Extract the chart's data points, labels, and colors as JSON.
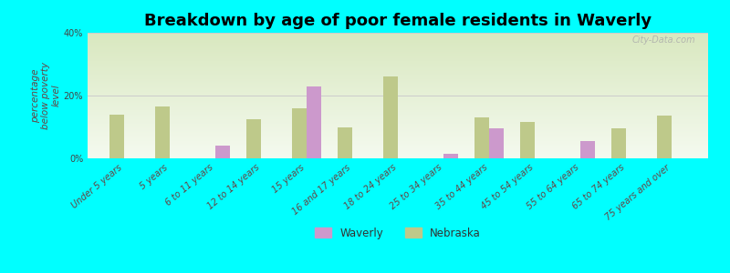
{
  "title": "Breakdown by age of poor female residents in Waverly",
  "categories": [
    "Under 5 years",
    "5 years",
    "6 to 11 years",
    "12 to 14 years",
    "15 years",
    "16 and 17 years",
    "18 to 24 years",
    "25 to 34 years",
    "35 to 44 years",
    "45 to 54 years",
    "55 to 64 years",
    "65 to 74 years",
    "75 years and over"
  ],
  "waverly_values": [
    null,
    null,
    4.0,
    null,
    23.0,
    null,
    null,
    1.5,
    9.5,
    null,
    5.5,
    null,
    null
  ],
  "nebraska_values": [
    14.0,
    16.5,
    null,
    12.5,
    16.0,
    10.0,
    26.0,
    null,
    13.0,
    11.5,
    null,
    9.5,
    13.5
  ],
  "waverly_color": "#cc99cc",
  "nebraska_color": "#bec98a",
  "background_color": "#00ffff",
  "ylabel": "percentage\nbelow poverty\nlevel",
  "ylim": [
    0,
    40
  ],
  "yticks": [
    0,
    20,
    40
  ],
  "ytick_labels": [
    "0%",
    "20%",
    "40%"
  ],
  "bar_width": 0.32,
  "title_fontsize": 13,
  "axis_label_fontsize": 7.5,
  "tick_fontsize": 7,
  "watermark": "City-Data.com"
}
